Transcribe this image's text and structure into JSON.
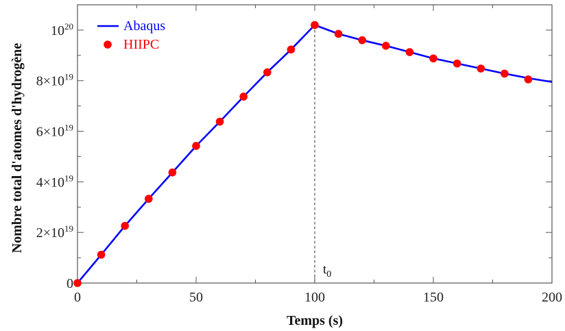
{
  "chart_data": {
    "type": "line",
    "title": "",
    "xlabel": "Temps (s)",
    "ylabel": "Nombre total d'atomes d'hydrogène",
    "xlim": [
      0,
      200
    ],
    "ylim": [
      0,
      1.1e+20
    ],
    "x_ticks": [
      {
        "value": 0,
        "label": "0"
      },
      {
        "value": 50,
        "label": "50"
      },
      {
        "value": 100,
        "label": "100"
      },
      {
        "value": 150,
        "label": "150"
      },
      {
        "value": 200,
        "label": "200"
      }
    ],
    "y_ticks": [
      {
        "value": 0,
        "label": "0",
        "mant": "",
        "exp": ""
      },
      {
        "value": 2e+19,
        "label": "2×10^19",
        "mant": "2×10",
        "exp": "19"
      },
      {
        "value": 4e+19,
        "label": "4×10^19",
        "mant": "4×10",
        "exp": "19"
      },
      {
        "value": 6e+19,
        "label": "6×10^19",
        "mant": "6×10",
        "exp": "19"
      },
      {
        "value": 8e+19,
        "label": "8×10^19",
        "mant": "8×10",
        "exp": "19"
      },
      {
        "value": 1e+20,
        "label": "10^20",
        "mant": "10",
        "exp": "20"
      }
    ],
    "grid": false,
    "legend_position": "top-left",
    "annotation": {
      "text": "t",
      "sub": "0",
      "x": 100
    },
    "series": [
      {
        "name": "Abaqus",
        "style": "line",
        "color": "#0000ff",
        "x": [
          0,
          10,
          20,
          30,
          40,
          50,
          60,
          70,
          80,
          90,
          100,
          110,
          120,
          130,
          140,
          150,
          160,
          170,
          180,
          190,
          200
        ],
        "y": [
          0,
          1.12e+19,
          2.26e+19,
          3.33e+19,
          4.37e+19,
          5.42e+19,
          6.38e+19,
          7.37e+19,
          8.33e+19,
          9.23e+19,
          1.02e+20,
          9.85e+19,
          9.6e+19,
          9.38e+19,
          9.13e+19,
          8.88e+19,
          8.68e+19,
          8.48e+19,
          8.28e+19,
          8.1e+19,
          7.95e+19
        ]
      },
      {
        "name": "HIIPC",
        "style": "marker",
        "color": "#ff0000",
        "x": [
          0,
          10,
          20,
          30,
          40,
          50,
          60,
          70,
          80,
          90,
          100,
          110,
          120,
          130,
          140,
          150,
          160,
          170,
          180,
          190
        ],
        "y": [
          0,
          1.12e+19,
          2.26e+19,
          3.33e+19,
          4.37e+19,
          5.42e+19,
          6.38e+19,
          7.37e+19,
          8.33e+19,
          9.23e+19,
          1.02e+20,
          9.85e+19,
          9.6e+19,
          9.38e+19,
          9.13e+19,
          8.88e+19,
          8.68e+19,
          8.48e+19,
          8.28e+19,
          8.05e+19
        ]
      }
    ]
  }
}
